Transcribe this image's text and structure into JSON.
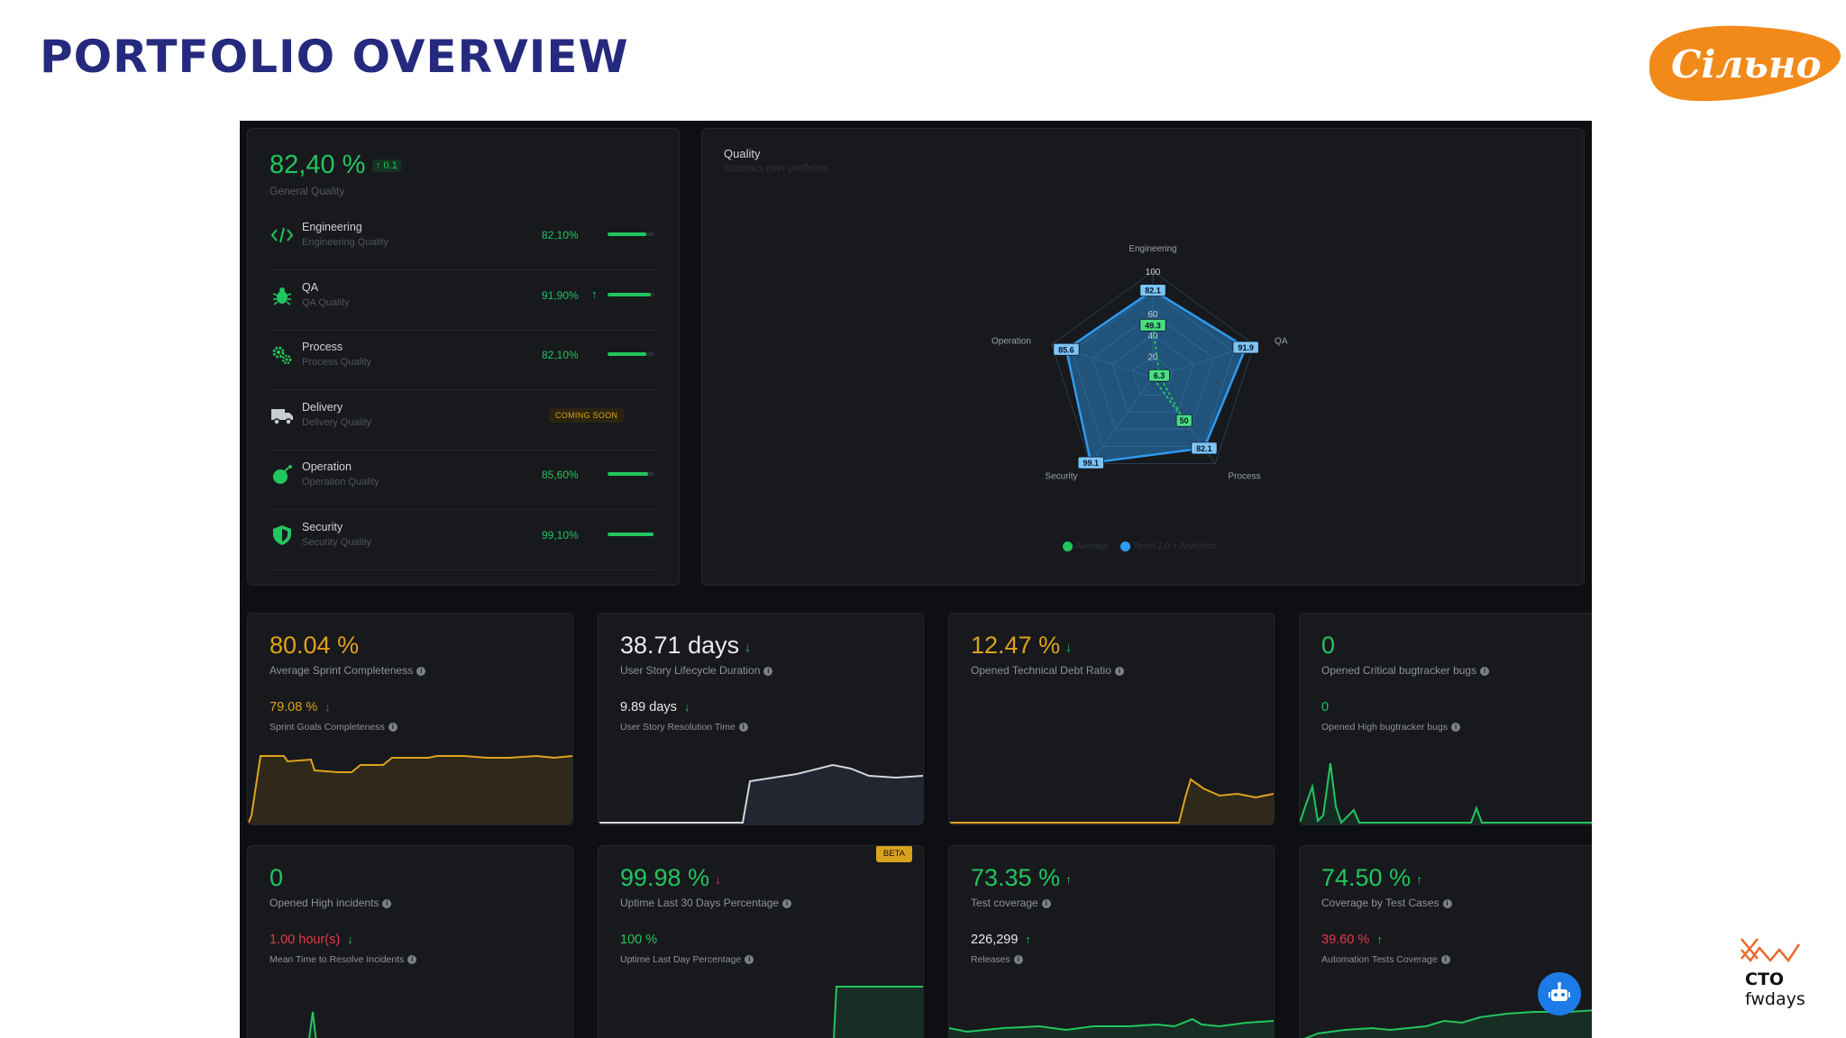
{
  "slide": {
    "title": "PORTFOLIO OVERVIEW"
  },
  "brand": {
    "logo_text": "Сільно"
  },
  "conference": {
    "line1": "CTO",
    "line2": "fwdays"
  },
  "quality_list": {
    "general_value": "82,40 %",
    "general_delta": "↑ 0.1",
    "general_label": "General Quality",
    "items": [
      {
        "icon": "code-icon",
        "name": "Engineering",
        "sub": "Engineering Quality",
        "pct": "82,10%",
        "level": 0.82,
        "arrow": ""
      },
      {
        "icon": "bug-icon",
        "name": "QA",
        "sub": "QA Quality",
        "pct": "91,90%",
        "level": 0.92,
        "arrow": "↑"
      },
      {
        "icon": "gears-icon",
        "name": "Process",
        "sub": "Process Quality",
        "pct": "82,10%",
        "level": 0.82,
        "arrow": ""
      },
      {
        "icon": "truck-icon",
        "name": "Delivery",
        "sub": "Delivery Quality",
        "badge": "COMING SOON"
      },
      {
        "icon": "bomb-icon",
        "name": "Operation",
        "sub": "Operation Quality",
        "pct": "85,60%",
        "level": 0.86,
        "arrow": ""
      },
      {
        "icon": "shield-icon",
        "name": "Security",
        "sub": "Security Quality",
        "pct": "99,10%",
        "level": 0.99,
        "arrow": ""
      }
    ]
  },
  "radar": {
    "title": "Quality",
    "subtitle": "Statistics over portfolios",
    "axes": [
      "Engineering",
      "QA",
      "Process",
      "Security",
      "Operation"
    ],
    "ticks": [
      "100",
      "80",
      "60",
      "40",
      "20"
    ],
    "legend": [
      "Average",
      "Team 2.0 + Analytics"
    ],
    "colors": {
      "average": "#22c55e",
      "team": "#2e9bf0"
    }
  },
  "chart_data": {
    "type": "radar",
    "title": "Quality",
    "subtitle": "Statistics over portfolios",
    "axes": [
      "Engineering",
      "QA",
      "Process",
      "Security",
      "Operation"
    ],
    "range": [
      0,
      100
    ],
    "series": [
      {
        "name": "Average",
        "values": [
          49.3,
          6.3,
          50,
          0,
          0
        ],
        "labels": [
          "49.3",
          "6.3",
          "50",
          "",
          ""
        ]
      },
      {
        "name": "Team 2.0 + Analytics",
        "values": [
          82.1,
          91.9,
          82.1,
          99.1,
          85.6
        ],
        "labels": [
          "82.1",
          "91.9",
          "82.1",
          "99.1",
          "85.6"
        ]
      }
    ]
  },
  "cards": [
    {
      "value": "80.04",
      "unit": " %",
      "trend": "",
      "color": "#e0a21c",
      "label": "Average Sprint Completeness",
      "sub_value": "79.08 %",
      "sub_trend": "↓",
      "sub_color": "#e0a21c",
      "sub_trend_color": "#e23b4a",
      "sub_label": "Sprint Goals Completeness",
      "spark_color": "#e0a21c",
      "fill": "rgba(224,162,28,0.12)"
    },
    {
      "value": "38.71",
      "unit": " days",
      "trend": "↓",
      "trend_color": "#22c55e",
      "color": "#e8eaed",
      "label": "User Story Lifecycle Duration",
      "sub_value": "9.89 days",
      "sub_trend": "↓",
      "sub_color": "#e8eaed",
      "sub_trend_color": "#22c55e",
      "sub_label": "User Story Resolution Time",
      "spark_color": "#d4d6da",
      "fill": "rgba(90,100,140,0.18)"
    },
    {
      "value": "12.47",
      "unit": " %",
      "trend": "↓",
      "trend_color": "#22c55e",
      "color": "#e0a21c",
      "label": "Opened Technical Debt Ratio",
      "sub_value": "",
      "sub_trend": "",
      "sub_label": "",
      "spark_color": "#e0a21c",
      "fill": "rgba(224,162,28,0.12)"
    },
    {
      "value": "0",
      "unit": "",
      "trend": "",
      "color": "#22c55e",
      "label": "Opened Critical bugtracker bugs",
      "sub_value": "0",
      "sub_trend": "",
      "sub_color": "#22c55e",
      "sub_label": "Opened High bugtracker bugs",
      "spark_color": "#22c55e",
      "fill": "rgba(34,197,94,0.10)"
    },
    {
      "value": "0",
      "unit": "",
      "trend": "",
      "color": "#22c55e",
      "label": "Opened High incidents",
      "sub_value": "1.00 hour(s)",
      "sub_trend": "↓",
      "sub_color": "#e23b4a",
      "sub_trend_color": "#22c55e",
      "sub_label": "Mean Time to Resolve Incidents",
      "spark_color": "#22c55e",
      "fill": "rgba(34,197,94,0.10)"
    },
    {
      "value": "99.98",
      "unit": " %",
      "trend": "↓",
      "trend_color": "#e23b4a",
      "color": "#22c55e",
      "label": "Uptime Last 30 Days Percentage",
      "sub_value": "100 %",
      "sub_trend": "",
      "sub_color": "#22c55e",
      "sub_label": "Uptime Last Day Percentage",
      "spark_color": "#22c55e",
      "fill": "rgba(34,197,94,0.12)",
      "badge": "BETA"
    },
    {
      "value": "73.35",
      "unit": " %",
      "trend": "↑",
      "trend_color": "#22c55e",
      "color": "#22c55e",
      "label": "Test coverage",
      "sub_value": "226,299",
      "sub_trend": "↑",
      "sub_color": "#e8eaed",
      "sub_trend_color": "#22c55e",
      "sub_label": "Releases",
      "spark_color": "#22c55e",
      "fill": "rgba(34,197,94,0.12)"
    },
    {
      "value": "74.50",
      "unit": " %",
      "trend": "↑",
      "trend_color": "#22c55e",
      "color": "#22c55e",
      "label": "Coverage by Test Cases",
      "sub_value": "39.60 %",
      "sub_trend": "↑",
      "sub_color": "#e23b4a",
      "sub_trend_color": "#22c55e",
      "sub_label": "Automation Tests Coverage",
      "spark_color": "#22c55e",
      "fill": "rgba(34,197,94,0.12)"
    }
  ],
  "bot_button": {
    "icon": "robot-icon",
    "color": "#1d7be8"
  }
}
